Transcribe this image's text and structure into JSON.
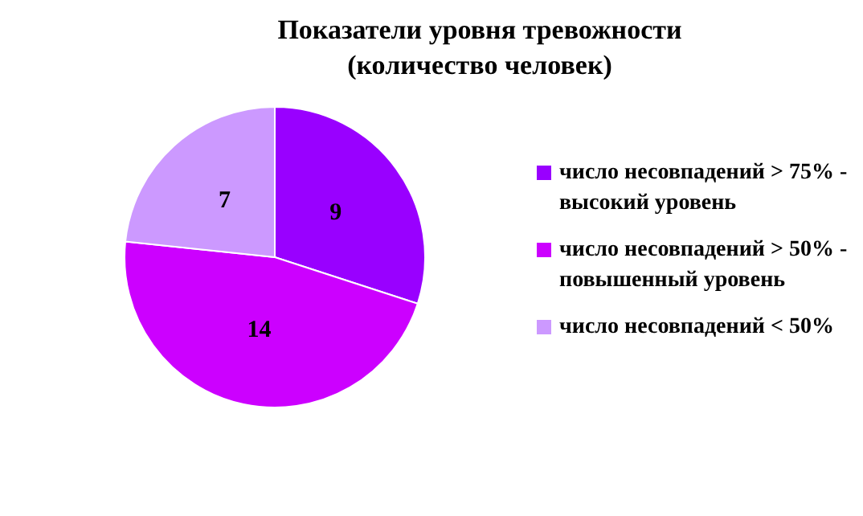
{
  "chart_data": {
    "type": "pie",
    "title": "Показатели уровня тревожности (количество человек)",
    "categories": [
      "число несовпадений > 75%  - высокий уровень",
      "число несовпадений > 50% - повышенный уровень",
      "число несовпадений < 50%"
    ],
    "values": [
      9,
      14,
      7
    ],
    "colors": [
      "#9900ff",
      "#cc00ff",
      "#cc99ff"
    ],
    "data_labels": true,
    "legend": "right"
  }
}
